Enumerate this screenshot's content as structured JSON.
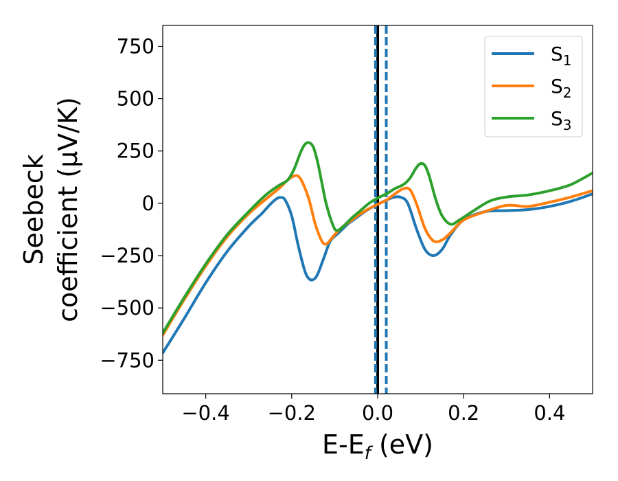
{
  "chart_data": {
    "type": "line",
    "xlabel": "E-E",
    "xlabel_sub": "f",
    "xlabel_unit": " (eV)",
    "ylabel_line1": "Seebeck",
    "ylabel_line2": "coefficient  (μV/K)",
    "xlim": [
      -0.5,
      0.5
    ],
    "ylim": [
      -910,
      850
    ],
    "xticks": [
      -0.4,
      -0.2,
      0.0,
      0.2,
      0.4
    ],
    "xtick_labels": [
      "−0.4",
      "−0.2",
      "0.0",
      "0.2",
      "0.4"
    ],
    "yticks": [
      -750,
      -500,
      -250,
      0,
      250,
      500,
      750
    ],
    "ytick_labels": [
      "−750",
      "−500",
      "−250",
      "0",
      "250",
      "500",
      "750"
    ],
    "grid": false,
    "legend_position": "top-right",
    "vlines": [
      {
        "x": 0.0,
        "color": "#000000",
        "style": "solid"
      },
      {
        "x": -0.005,
        "color": "#1f77b4",
        "style": "dashed"
      },
      {
        "x": 0.02,
        "color": "#1f77b4",
        "style": "dashed"
      }
    ],
    "series": [
      {
        "name": "S",
        "sub": "1",
        "color": "#1f77b4",
        "x": [
          -0.5,
          -0.45,
          -0.4,
          -0.35,
          -0.3,
          -0.27,
          -0.25,
          -0.235,
          -0.225,
          -0.215,
          -0.2,
          -0.185,
          -0.17,
          -0.16,
          -0.15,
          -0.14,
          -0.125,
          -0.11,
          -0.09,
          -0.07,
          -0.05,
          -0.03,
          -0.01,
          0.0,
          0.02,
          0.04,
          0.055,
          0.07,
          0.09,
          0.11,
          0.13,
          0.15,
          0.17,
          0.2,
          0.25,
          0.3,
          0.35,
          0.4,
          0.45,
          0.5
        ],
        "y": [
          -715,
          -550,
          -380,
          -230,
          -110,
          -50,
          -5,
          22,
          28,
          15,
          -60,
          -200,
          -320,
          -360,
          -365,
          -340,
          -260,
          -180,
          -140,
          -100,
          -70,
          -40,
          -15,
          -5,
          15,
          30,
          28,
          0,
          -120,
          -220,
          -250,
          -220,
          -150,
          -80,
          -40,
          -35,
          -30,
          -15,
          10,
          45
        ]
      },
      {
        "name": "S",
        "sub": "2",
        "color": "#ff7f0e",
        "x": [
          -0.5,
          -0.45,
          -0.4,
          -0.35,
          -0.3,
          -0.26,
          -0.23,
          -0.21,
          -0.195,
          -0.185,
          -0.175,
          -0.16,
          -0.145,
          -0.13,
          -0.12,
          -0.11,
          -0.1,
          -0.08,
          -0.06,
          -0.04,
          -0.02,
          0.0,
          0.02,
          0.04,
          0.06,
          0.075,
          0.09,
          0.11,
          0.13,
          0.15,
          0.17,
          0.2,
          0.25,
          0.3,
          0.35,
          0.4,
          0.45,
          0.5
        ],
        "y": [
          -630,
          -460,
          -300,
          -160,
          -50,
          20,
          70,
          110,
          130,
          130,
          100,
          20,
          -100,
          -180,
          -195,
          -175,
          -150,
          -110,
          -80,
          -50,
          -25,
          -5,
          15,
          45,
          70,
          65,
          0,
          -120,
          -180,
          -175,
          -140,
          -80,
          -40,
          -10,
          -15,
          5,
          30,
          60
        ]
      },
      {
        "name": "S",
        "sub": "3",
        "color": "#2ca02c",
        "x": [
          -0.5,
          -0.45,
          -0.4,
          -0.35,
          -0.3,
          -0.26,
          -0.23,
          -0.21,
          -0.195,
          -0.18,
          -0.17,
          -0.16,
          -0.15,
          -0.14,
          -0.13,
          -0.12,
          -0.105,
          -0.095,
          -0.08,
          -0.06,
          -0.04,
          -0.02,
          0.0,
          0.02,
          0.04,
          0.06,
          0.075,
          0.09,
          0.1,
          0.11,
          0.12,
          0.135,
          0.15,
          0.17,
          0.19,
          0.22,
          0.26,
          0.3,
          0.35,
          0.4,
          0.45,
          0.5
        ],
        "y": [
          -620,
          -450,
          -290,
          -150,
          -40,
          40,
          85,
          110,
          160,
          240,
          280,
          290,
          270,
          200,
          100,
          0,
          -100,
          -130,
          -110,
          -70,
          -35,
          0,
          25,
          45,
          70,
          90,
          120,
          170,
          190,
          180,
          130,
          20,
          -60,
          -100,
          -80,
          -40,
          10,
          30,
          40,
          60,
          90,
          145
        ]
      }
    ]
  }
}
